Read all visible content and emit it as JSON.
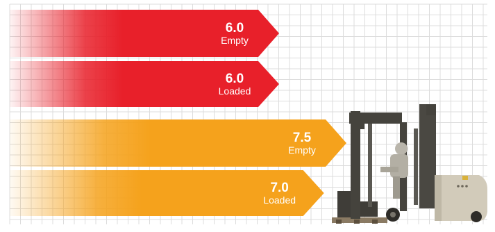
{
  "chart_data": {
    "type": "bar",
    "orientation": "horizontal",
    "categories": [
      "Empty",
      "Loaded",
      "Empty",
      "Loaded"
    ],
    "values": [
      6.0,
      6.0,
      7.5,
      7.0
    ],
    "value_labels": [
      "6.0",
      "6.0",
      "7.5",
      "7.0"
    ],
    "bar_colors": [
      "#e8202a",
      "#e8202a",
      "#f5a21c",
      "#f5a21c"
    ],
    "title": "",
    "xlabel": "",
    "ylabel": "",
    "grid": true,
    "legend": "none",
    "illustration": "forklift-icon"
  }
}
